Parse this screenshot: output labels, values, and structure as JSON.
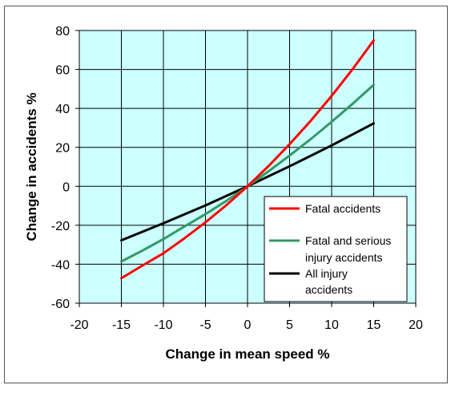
{
  "chart_data": {
    "type": "line",
    "title": "",
    "xlabel": "Change in mean speed %",
    "ylabel": "Change in accidents %",
    "xlim": [
      -20,
      20
    ],
    "ylim": [
      -60,
      80
    ],
    "xticks": [
      -20,
      -15,
      -10,
      -5,
      0,
      5,
      10,
      15,
      20
    ],
    "yticks": [
      -60,
      -40,
      -20,
      0,
      20,
      40,
      60,
      80
    ],
    "grid": true,
    "legend_position": "bottom-right",
    "colors": {
      "plot_background": "#ccffff",
      "grid": "#000000"
    },
    "series": [
      {
        "name": "Fatal accidents",
        "color": "#ff0000",
        "x": [
          -15,
          -12.5,
          -10,
          -7.5,
          -5,
          -2.5,
          0,
          2.5,
          5,
          7.5,
          10,
          12.5,
          15
        ],
        "y": [
          -47.2,
          -40.7,
          -34.4,
          -26.7,
          -18.5,
          -9.6,
          0,
          10.4,
          21.6,
          33.6,
          46.4,
          60.2,
          74.9
        ]
      },
      {
        "name_lines": [
          "Fatal and serious",
          "injury accidents"
        ],
        "color": "#339966",
        "x": [
          -15,
          -12.5,
          -10,
          -7.5,
          -5,
          -2.5,
          0,
          2.5,
          5,
          7.5,
          10,
          12.5,
          15
        ],
        "y": [
          -38.6,
          -33.0,
          -27.1,
          -20.6,
          -14.3,
          -7.4,
          0,
          7.7,
          15.8,
          24.2,
          33.1,
          42.4,
          52.1
        ]
      },
      {
        "name_lines": [
          "All injury",
          "accidents"
        ],
        "color": "#000000",
        "x": [
          -15,
          -10,
          -5,
          0,
          5,
          10,
          15
        ],
        "y": [
          -27.7,
          -19.0,
          -9.8,
          0,
          10.3,
          21.0,
          32.3
        ]
      }
    ]
  }
}
